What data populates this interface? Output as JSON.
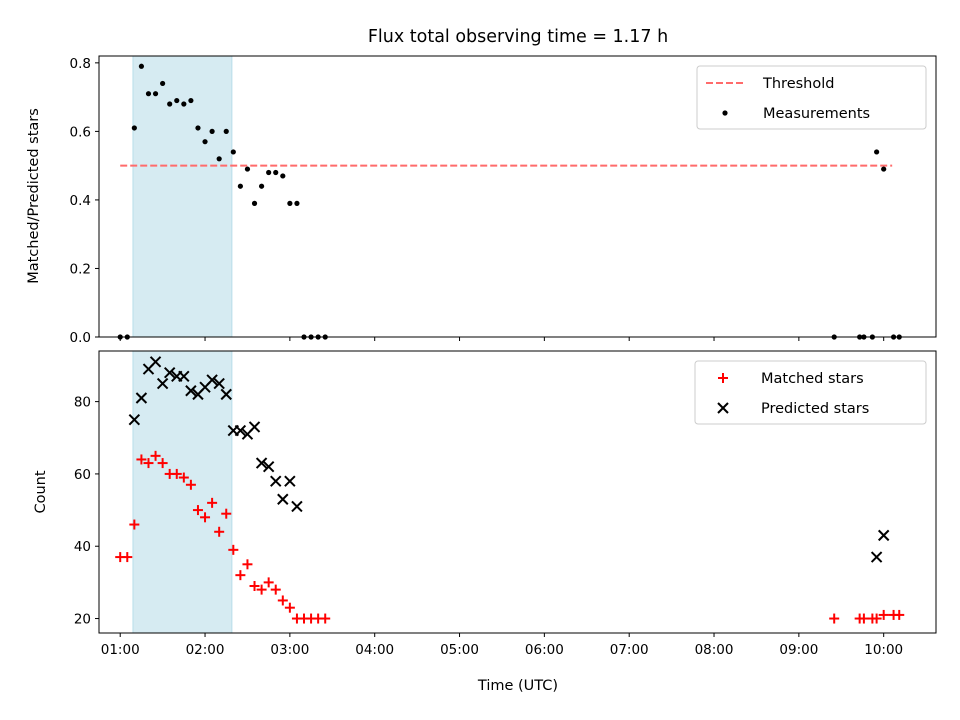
{
  "chart_data": {
    "title": "Flux total observing time = 1.17 h",
    "xlabel": "Time (UTC)",
    "x_ticks": [
      "01:00",
      "02:00",
      "03:00",
      "04:00",
      "05:00",
      "06:00",
      "07:00",
      "08:00",
      "09:00",
      "10:00"
    ],
    "xlim": [
      "00:45",
      "10:37"
    ],
    "highlight_span": {
      "start": "01:09",
      "end": "02:19",
      "color": "#add8e6"
    },
    "panels": [
      {
        "type": "scatter",
        "ylabel": "Matched/Predicted stars",
        "ylim": [
          0,
          0.82
        ],
        "y_ticks": [
          "0.0",
          "0.2",
          "0.4",
          "0.6",
          "0.8"
        ],
        "legend": {
          "placement": "upper right",
          "entries": [
            "Threshold",
            "Measurements"
          ]
        },
        "threshold": {
          "name": "Threshold",
          "value": 0.5,
          "x_start": "01:00",
          "x_end": "10:06",
          "color": "#ff6b6b",
          "style": "dashed"
        },
        "series": [
          {
            "name": "Measurements",
            "color": "#000000",
            "marker": "dot",
            "points": [
              [
                "01:00",
                0.0
              ],
              [
                "01:05",
                0.0
              ],
              [
                "01:10",
                0.61
              ],
              [
                "01:15",
                0.79
              ],
              [
                "01:20",
                0.71
              ],
              [
                "01:25",
                0.71
              ],
              [
                "01:30",
                0.74
              ],
              [
                "01:35",
                0.68
              ],
              [
                "01:40",
                0.69
              ],
              [
                "01:45",
                0.68
              ],
              [
                "01:50",
                0.69
              ],
              [
                "01:55",
                0.61
              ],
              [
                "02:00",
                0.57
              ],
              [
                "02:05",
                0.6
              ],
              [
                "02:10",
                0.52
              ],
              [
                "02:15",
                0.6
              ],
              [
                "02:20",
                0.54
              ],
              [
                "02:25",
                0.44
              ],
              [
                "02:30",
                0.49
              ],
              [
                "02:35",
                0.39
              ],
              [
                "02:40",
                0.44
              ],
              [
                "02:45",
                0.48
              ],
              [
                "02:50",
                0.48
              ],
              [
                "02:55",
                0.47
              ],
              [
                "03:00",
                0.39
              ],
              [
                "03:05",
                0.39
              ],
              [
                "03:10",
                0.0
              ],
              [
                "03:15",
                0.0
              ],
              [
                "03:20",
                0.0
              ],
              [
                "03:25",
                0.0
              ],
              [
                "09:25",
                0.0
              ],
              [
                "09:43",
                0.0
              ],
              [
                "09:46",
                0.0
              ],
              [
                "09:52",
                0.0
              ],
              [
                "09:55",
                0.54
              ],
              [
                "10:00",
                0.49
              ],
              [
                "10:07",
                0.0
              ],
              [
                "10:11",
                0.0
              ]
            ]
          }
        ]
      },
      {
        "type": "scatter",
        "ylabel": "Count",
        "ylim": [
          16,
          94
        ],
        "y_ticks": [
          "20",
          "40",
          "60",
          "80"
        ],
        "legend": {
          "placement": "upper right",
          "entries": [
            "Matched stars",
            "Predicted stars"
          ]
        },
        "series": [
          {
            "name": "Matched stars",
            "color": "#ff0000",
            "marker": "plus",
            "points": [
              [
                "01:00",
                37
              ],
              [
                "01:05",
                37
              ],
              [
                "01:10",
                46
              ],
              [
                "01:15",
                64
              ],
              [
                "01:20",
                63
              ],
              [
                "01:25",
                65
              ],
              [
                "01:30",
                63
              ],
              [
                "01:35",
                60
              ],
              [
                "01:40",
                60
              ],
              [
                "01:45",
                59
              ],
              [
                "01:50",
                57
              ],
              [
                "01:55",
                50
              ],
              [
                "02:00",
                48
              ],
              [
                "02:05",
                52
              ],
              [
                "02:10",
                44
              ],
              [
                "02:15",
                49
              ],
              [
                "02:20",
                39
              ],
              [
                "02:25",
                32
              ],
              [
                "02:30",
                35
              ],
              [
                "02:35",
                29
              ],
              [
                "02:40",
                28
              ],
              [
                "02:45",
                30
              ],
              [
                "02:50",
                28
              ],
              [
                "02:55",
                25
              ],
              [
                "03:00",
                23
              ],
              [
                "03:05",
                20
              ],
              [
                "03:10",
                20
              ],
              [
                "03:15",
                20
              ],
              [
                "03:20",
                20
              ],
              [
                "03:25",
                20
              ],
              [
                "09:25",
                20
              ],
              [
                "09:43",
                20
              ],
              [
                "09:46",
                20
              ],
              [
                "09:52",
                20
              ],
              [
                "09:55",
                20
              ],
              [
                "10:00",
                21
              ],
              [
                "10:07",
                21
              ],
              [
                "10:11",
                21
              ]
            ]
          },
          {
            "name": "Predicted stars",
            "color": "#000000",
            "marker": "x",
            "points": [
              [
                "01:10",
                75
              ],
              [
                "01:15",
                81
              ],
              [
                "01:20",
                89
              ],
              [
                "01:25",
                91
              ],
              [
                "01:30",
                85
              ],
              [
                "01:35",
                88
              ],
              [
                "01:40",
                87
              ],
              [
                "01:45",
                87
              ],
              [
                "01:50",
                83
              ],
              [
                "01:55",
                82
              ],
              [
                "02:00",
                84
              ],
              [
                "02:05",
                86
              ],
              [
                "02:10",
                85
              ],
              [
                "02:15",
                82
              ],
              [
                "02:20",
                72
              ],
              [
                "02:25",
                72
              ],
              [
                "02:30",
                71
              ],
              [
                "02:35",
                73
              ],
              [
                "02:40",
                63
              ],
              [
                "02:45",
                62
              ],
              [
                "02:50",
                58
              ],
              [
                "02:55",
                53
              ],
              [
                "03:00",
                58
              ],
              [
                "03:05",
                51
              ],
              [
                "09:55",
                37
              ],
              [
                "10:00",
                43
              ]
            ]
          }
        ]
      }
    ]
  }
}
